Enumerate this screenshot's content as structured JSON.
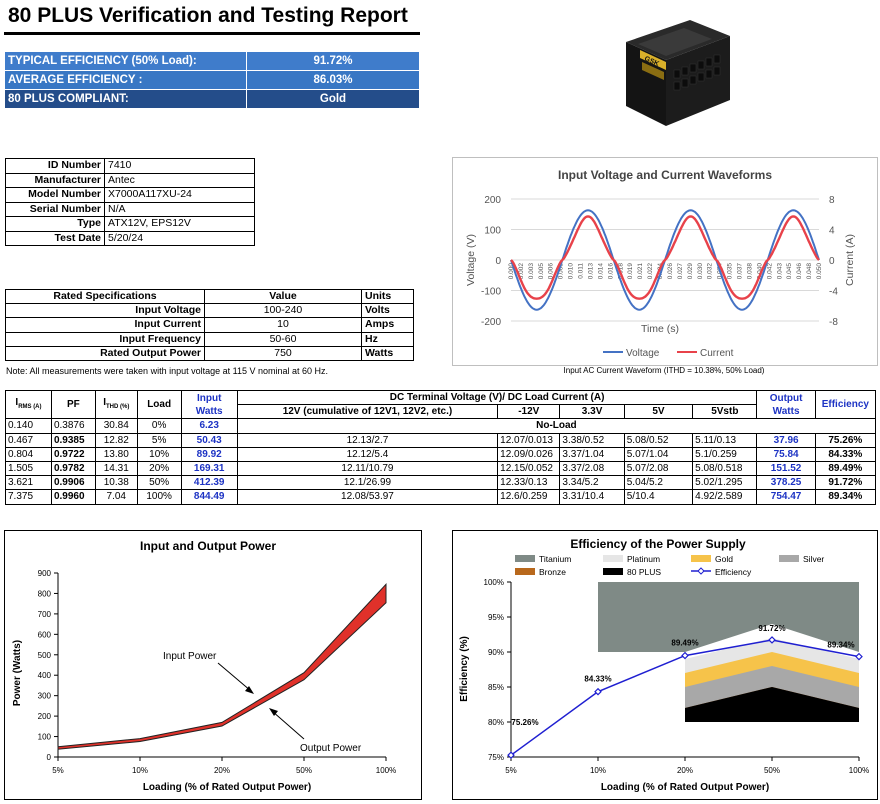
{
  "header": {
    "title": "80 PLUS Verification and Testing Report"
  },
  "summary": {
    "rows": [
      {
        "label": "TYPICAL EFFICIENCY (50% Load):",
        "value": "91.72%"
      },
      {
        "label": "AVERAGE EFFICIENCY :",
        "value": "86.03%"
      },
      {
        "label": "80 PLUS COMPLIANT:",
        "value": "Gold"
      }
    ]
  },
  "product": {
    "label": "GSK"
  },
  "identification": [
    {
      "key": "ID Number",
      "value": "7410"
    },
    {
      "key": "Manufacturer",
      "value": "Antec"
    },
    {
      "key": "Model Number",
      "value": "X7000A117XU-24"
    },
    {
      "key": "Serial Number",
      "value": "N/A"
    },
    {
      "key": "Type",
      "value": "ATX12V, EPS12V"
    },
    {
      "key": "Test Date",
      "value": "5/20/24"
    }
  ],
  "rated_specs": {
    "headers": [
      "Rated Specifications",
      "Value",
      "Units"
    ],
    "rows": [
      {
        "name": "Input Voltage",
        "value": "100-240",
        "unit": "Volts"
      },
      {
        "name": "Input Current",
        "value": "10",
        "unit": "Amps"
      },
      {
        "name": "Input Frequency",
        "value": "50-60",
        "unit": "Hz"
      },
      {
        "name": "Rated Output Power",
        "value": "750",
        "unit": "Watts"
      }
    ]
  },
  "note": "Note: All measurements were taken with input voltage at 115 V nominal at 60 Hz.",
  "waveform_caption": "Input AC Current Waveform (ITHD = 10.38%, 50% Load)",
  "measurements": {
    "headers": {
      "irms": "I",
      "irms_sub": "RMS (A)",
      "pf": "PF",
      "ithd": "I",
      "ithd_sub": "THD (%)",
      "load": "Load",
      "input_watts": "Input Watts",
      "dc_group": "DC Terminal Voltage (V)/ DC Load Current (A)",
      "v12": "12V (cumulative of 12V1, 12V2, etc.)",
      "vm12": "-12V",
      "v33": "3.3V",
      "v5": "5V",
      "v5sb": "5Vstb",
      "output_watts": "Output Watts",
      "efficiency": "Efficiency"
    },
    "noload": {
      "irms": "0.140",
      "pf": "0.3876",
      "ithd": "30.84",
      "load": "0%",
      "input_watts": "6.23",
      "label": "No-Load"
    },
    "rows": [
      {
        "irms": "0.467",
        "pf": "0.9385",
        "ithd": "12.82",
        "load": "5%",
        "input_watts": "50.43",
        "v12": "12.13/2.7",
        "vm12": "12.07/0.013",
        "v33": "3.38/0.52",
        "v5": "5.08/0.52",
        "v5sb": "5.11/0.13",
        "output_watts": "37.96",
        "efficiency": "75.26%"
      },
      {
        "irms": "0.804",
        "pf": "0.9722",
        "ithd": "13.80",
        "load": "10%",
        "input_watts": "89.92",
        "v12": "12.12/5.4",
        "vm12": "12.09/0.026",
        "v33": "3.37/1.04",
        "v5": "5.07/1.04",
        "v5sb": "5.1/0.259",
        "output_watts": "75.84",
        "efficiency": "84.33%"
      },
      {
        "irms": "1.505",
        "pf": "0.9782",
        "ithd": "14.31",
        "load": "20%",
        "input_watts": "169.31",
        "v12": "12.11/10.79",
        "vm12": "12.15/0.052",
        "v33": "3.37/2.08",
        "v5": "5.07/2.08",
        "v5sb": "5.08/0.518",
        "output_watts": "151.52",
        "efficiency": "89.49%"
      },
      {
        "irms": "3.621",
        "pf": "0.9906",
        "ithd": "10.38",
        "load": "50%",
        "input_watts": "412.39",
        "v12": "12.1/26.99",
        "vm12": "12.33/0.13",
        "v33": "3.34/5.2",
        "v5": "5.04/5.2",
        "v5sb": "5.02/1.295",
        "output_watts": "378.25",
        "efficiency": "91.72%"
      },
      {
        "irms": "7.375",
        "pf": "0.9960",
        "ithd": "7.04",
        "load": "100%",
        "input_watts": "844.49",
        "v12": "12.08/53.97",
        "vm12": "12.6/0.259",
        "v33": "3.31/10.4",
        "v5": "5/10.4",
        "v5sb": "4.92/2.589",
        "output_watts": "754.47",
        "efficiency": "89.34%"
      }
    ]
  },
  "chart_data": [
    {
      "type": "line",
      "title": "Input Voltage and Current Waveforms",
      "xlabel": "Time (s)",
      "ylabel": "Voltage (V)",
      "y2label": "Current (A)",
      "ylim": [
        -200,
        200
      ],
      "y2lim": [
        -8,
        8
      ],
      "yticks": [
        "200",
        "100",
        "0",
        "-100",
        "-200"
      ],
      "y2ticks": [
        "8",
        "4",
        "0",
        "-4",
        "-8"
      ],
      "xticks": [
        "0.000",
        "0.002",
        "0.003",
        "0.005",
        "0.006",
        "0.008",
        "0.010",
        "0.011",
        "0.013",
        "0.014",
        "0.016",
        "0.018",
        "0.019",
        "0.021",
        "0.022",
        "0.024",
        "0.026",
        "0.027",
        "0.029",
        "0.030",
        "0.032",
        "0.034",
        "0.035",
        "0.037",
        "0.038",
        "0.040",
        "0.042",
        "0.043",
        "0.045",
        "0.046",
        "0.048",
        "0.050"
      ],
      "series": [
        {
          "name": "Voltage",
          "color": "#4472c4",
          "amplitude": 163,
          "frequency_hz": 60,
          "period_s": 0.0167
        },
        {
          "name": "Current",
          "color": "#e8424a",
          "amplitude": 5.4,
          "frequency_hz": 60
        }
      ]
    },
    {
      "type": "area",
      "title": "Input and Output Power",
      "xlabel": "Loading (% of Rated Output Power)",
      "ylabel": "Power (Watts)",
      "categories": [
        "5%",
        "10%",
        "20%",
        "50%",
        "100%"
      ],
      "ylim": [
        0,
        900
      ],
      "yticks": [
        "0",
        "100",
        "200",
        "300",
        "400",
        "500",
        "600",
        "700",
        "800",
        "900"
      ],
      "series": [
        {
          "name": "Input Power",
          "values": [
            50.43,
            89.92,
            169.31,
            412.39,
            844.49
          ]
        },
        {
          "name": "Output Power",
          "values": [
            37.96,
            75.84,
            151.52,
            378.25,
            754.47
          ]
        }
      ],
      "annotations": [
        "Input Power",
        "Output Power"
      ]
    },
    {
      "type": "line",
      "title": "Efficiency of the Power Supply",
      "xlabel": "Loading (% of Rated Output Power)",
      "ylabel": "Efficiency (%)",
      "categories": [
        "5%",
        "10%",
        "20%",
        "50%",
        "100%"
      ],
      "ylim": [
        75,
        100
      ],
      "yticks": [
        "75%",
        "80%",
        "85%",
        "90%",
        "95%",
        "100%"
      ],
      "series": [
        {
          "name": "Efficiency",
          "values": [
            75.26,
            84.33,
            89.49,
            91.72,
            89.34
          ],
          "labels": [
            "75.26%",
            "84.33%",
            "89.49%",
            "91.72%",
            "89.34%"
          ],
          "color": "#1f1fd1"
        }
      ],
      "bands": [
        {
          "name": "Titanium",
          "color": "#7f8a86",
          "values": [
            null,
            null,
            90,
            94,
            90
          ]
        },
        {
          "name": "Platinum",
          "color": "#e6e6e6",
          "values": [
            null,
            null,
            89,
            92,
            89
          ]
        },
        {
          "name": "Gold",
          "color": "#f6c34a",
          "values": [
            null,
            null,
            87,
            90,
            87
          ]
        },
        {
          "name": "Silver",
          "color": "#a8a8a8",
          "values": [
            null,
            null,
            85,
            88,
            85
          ]
        },
        {
          "name": "Bronze",
          "color": "#b8681c",
          "values": [
            null,
            null,
            82,
            85,
            82
          ]
        },
        {
          "name": "80 PLUS",
          "color": "#000000",
          "values": [
            null,
            null,
            80,
            80,
            80
          ]
        }
      ],
      "titanium_10pct": 90
    }
  ]
}
